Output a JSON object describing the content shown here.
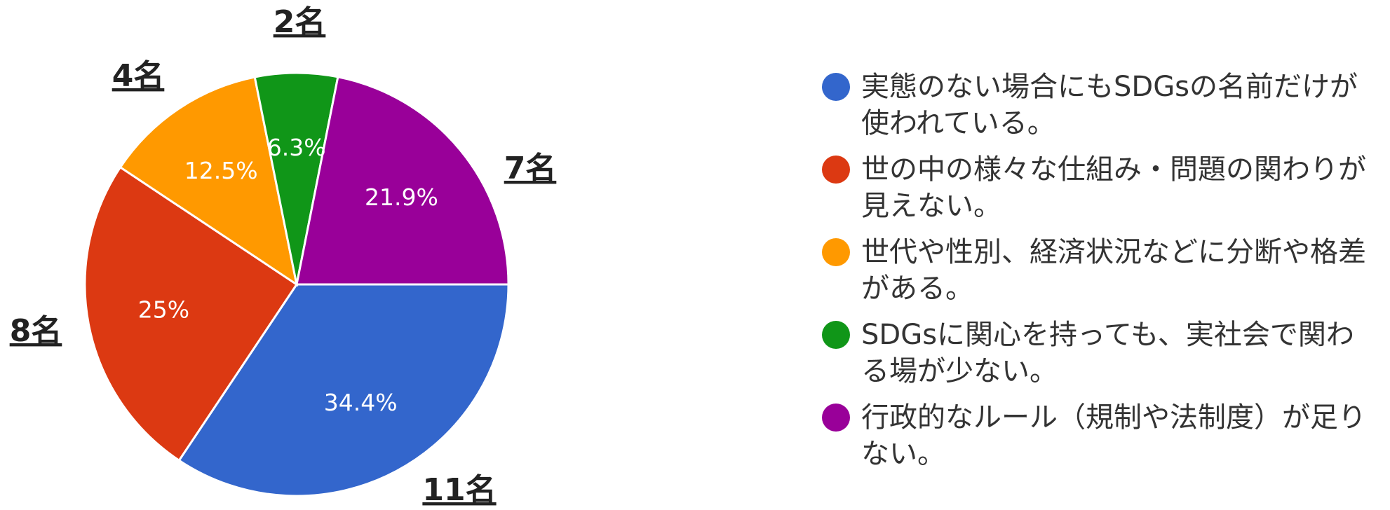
{
  "chart_data": {
    "type": "pie",
    "categories": [
      "実態のない場合にもSDGsの名前だけが使われている。",
      "世の中の様々な仕組み・問題の関わりが見えない。",
      "世代や性別、経済状況などに分断や格差がある。",
      "SDGsに関心を持っても、実社会で関わる場が少ない。",
      "行政的なルール（規制や法制度）が足りない。"
    ],
    "values": [
      34.4,
      25,
      12.5,
      6.3,
      21.9
    ],
    "value_labels": [
      "34.4%",
      "25%",
      "12.5%",
      "6.3%",
      "21.9%"
    ],
    "counts": [
      11,
      8,
      4,
      2,
      7
    ],
    "count_labels": [
      "11名",
      "8名",
      "4名",
      "2名",
      "7名"
    ],
    "colors": [
      "#3366cc",
      "#dc3912",
      "#ff9900",
      "#109618",
      "#990099"
    ],
    "legend": "right"
  }
}
